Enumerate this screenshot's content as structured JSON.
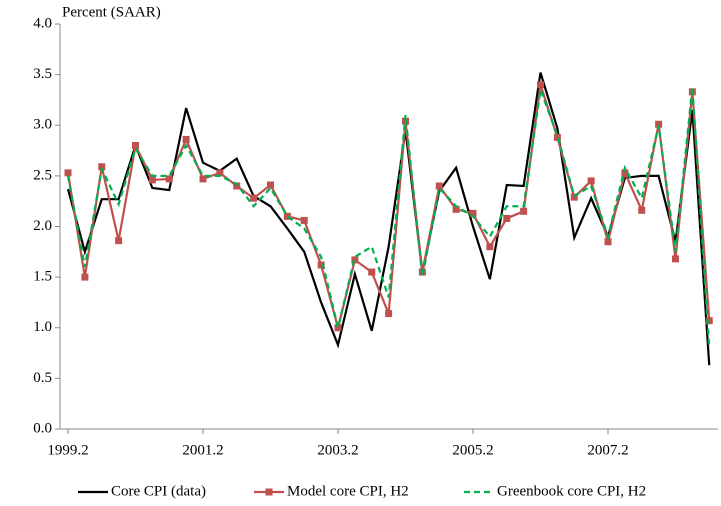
{
  "chart_data": {
    "type": "line",
    "y_axis_label": "Percent (SAAR)",
    "categories": [
      "1999.2",
      null,
      null,
      null,
      null,
      null,
      null,
      null,
      "2001.2",
      null,
      null,
      null,
      null,
      null,
      null,
      null,
      "2003.2",
      null,
      null,
      null,
      null,
      null,
      null,
      null,
      "2005.2",
      null,
      null,
      null,
      null,
      null,
      null,
      null,
      "2007.2",
      null,
      null,
      null,
      null,
      null,
      null
    ],
    "ylim": [
      0,
      4
    ],
    "yticks": [
      {
        "value": 0,
        "label": "0.0"
      },
      0.5,
      {
        "value": 1,
        "label": "1.0"
      },
      1.5,
      {
        "value": 2,
        "label": "2.0"
      },
      2.5,
      {
        "value": 3,
        "label": "3.0"
      },
      3.5,
      {
        "value": 4,
        "label": "4.0"
      }
    ],
    "grid": false,
    "legend_position": "bottom",
    "series": [
      {
        "name": "Core CPI (data)",
        "color": "#000000",
        "dash": false,
        "marker": false,
        "values": [
          2.37,
          1.75,
          2.27,
          2.27,
          2.8,
          2.38,
          2.36,
          3.17,
          2.63,
          2.55,
          2.67,
          2.3,
          2.2,
          1.98,
          1.75,
          1.25,
          0.83,
          1.53,
          0.97,
          1.8,
          2.95,
          1.55,
          2.35,
          2.58,
          2.0,
          1.48,
          2.41,
          2.4,
          3.52,
          2.97,
          1.89,
          2.28,
          1.9,
          2.48,
          2.5,
          2.5,
          1.85,
          3.15,
          0.63
        ]
      },
      {
        "name": "Model core CPI, H2",
        "color": "#c0504d",
        "dash": false,
        "marker": true,
        "values": [
          2.53,
          1.5,
          2.59,
          1.86,
          2.8,
          2.46,
          2.47,
          2.86,
          2.47,
          2.53,
          2.4,
          2.28,
          2.41,
          2.1,
          2.06,
          1.62,
          1.0,
          1.67,
          1.55,
          1.14,
          3.04,
          1.55,
          2.4,
          2.17,
          2.13,
          1.8,
          2.08,
          2.15,
          3.4,
          2.88,
          2.29,
          2.45,
          1.85,
          2.53,
          2.16,
          3.01,
          1.68,
          3.33,
          1.07
        ]
      },
      {
        "name": "Greenbook core CPI, H2",
        "color": "#00b050",
        "dash": true,
        "marker": false,
        "values": [
          2.5,
          1.6,
          2.57,
          2.22,
          2.77,
          2.5,
          2.5,
          2.8,
          2.5,
          2.5,
          2.42,
          2.2,
          2.38,
          2.1,
          1.98,
          1.7,
          1.0,
          1.7,
          1.8,
          1.3,
          3.1,
          1.5,
          2.38,
          2.2,
          2.1,
          1.9,
          2.2,
          2.2,
          3.35,
          2.9,
          2.3,
          2.4,
          1.9,
          2.58,
          2.28,
          3.0,
          1.75,
          3.38,
          0.8
        ]
      }
    ]
  }
}
